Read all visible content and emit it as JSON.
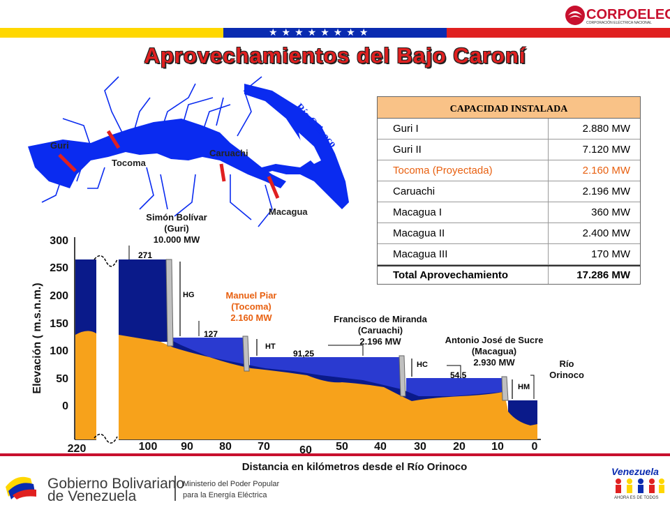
{
  "header": {
    "logo_name": "CORPOELEC",
    "logo_sub": "CORPORACIÓN ELÉCTRICA NACIONAL",
    "stars": "★★★★★★★★",
    "title": "Aprovechamientos del Bajo Caroní"
  },
  "map": {
    "labels": {
      "guri": "Guri",
      "tocoma": "Tocoma",
      "caruachi": "Caruachi",
      "macagua": "Macagua",
      "rio_orinoco": "Río Orinoco"
    },
    "colors": {
      "water": "#0a2bf0",
      "dam": "#e02020"
    }
  },
  "table": {
    "header": "CAPACIDAD INSTALADA",
    "rows": [
      {
        "name": "Guri I",
        "value": "2.880 MW"
      },
      {
        "name": "Guri II",
        "value": "7.120 MW"
      },
      {
        "name": "Tocoma (Proyectada)",
        "value": "2.160 MW"
      },
      {
        "name": "Caruachi",
        "value": "2.196 MW"
      },
      {
        "name": "Macagua I",
        "value": "360 MW"
      },
      {
        "name": "Macagua II",
        "value": "2.400 MW"
      },
      {
        "name": "Macagua III",
        "value": "170 MW"
      }
    ],
    "total": {
      "name": "Total Aprovechamiento",
      "value": "17.286 MW"
    }
  },
  "profile": {
    "ylabel": "Elevación ( m.s.n.m.)",
    "xlabel": "Distancia en kilómetros desde el Río Orinoco",
    "y_ticks": [
      "300",
      "250",
      "200",
      "150",
      "100",
      "50",
      "0"
    ],
    "x_ticks": [
      "220",
      "100",
      "90",
      "80",
      "70",
      "60",
      "50",
      "40",
      "30",
      "20",
      "10",
      "0"
    ],
    "dams": [
      {
        "name": "Simón Bolívar",
        "site": "(Guri)",
        "power": "10.000 MW",
        "level": "271",
        "head": "HG"
      },
      {
        "name": "Manuel Piar",
        "site": "(Tocoma)",
        "power": "2.160 MW",
        "level": "127",
        "head": "HT"
      },
      {
        "name": "Francisco de Miranda",
        "site": "(Caruachi)",
        "power": "2.196 MW",
        "level": "91,25",
        "head": "HC"
      },
      {
        "name": "Antonio José de Sucre",
        "site": "(Macagua)",
        "power": "2.930 MW",
        "level": "54.5",
        "head": "HM"
      }
    ],
    "outlet": {
      "line1": "Río",
      "line2": "Orinoco"
    },
    "colors": {
      "ground": "#f7a21b",
      "reservoir": "#0a1a8a",
      "lake": "#2a3ad0",
      "highlight": "#e86010"
    }
  },
  "footer": {
    "gob_line1": "Gobierno Bolivariano",
    "gob_line2": "de Venezuela",
    "min_line1": "Ministerio del Poder Popular",
    "min_line2": "para la Energía Eléctrica",
    "vz": "Venezuela",
    "vz_sub": "AHORA ES DE TODOS"
  }
}
